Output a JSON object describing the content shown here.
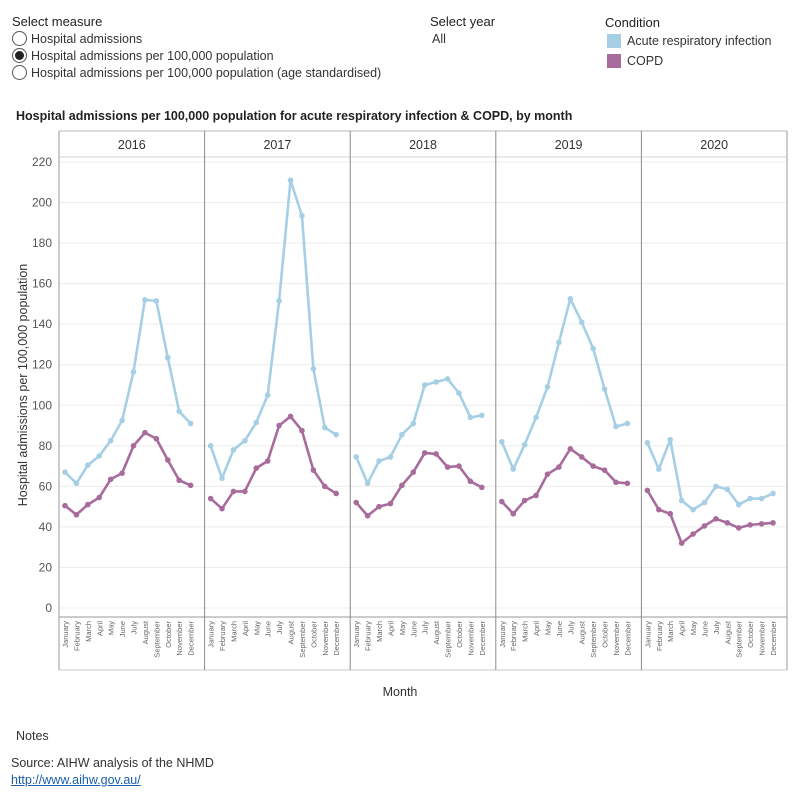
{
  "controls": {
    "measure": {
      "title": "Select measure",
      "options": [
        {
          "label": "Hospital admissions",
          "selected": false
        },
        {
          "label": "Hospital admissions per 100,000 population",
          "selected": true
        },
        {
          "label": "Hospital admissions per 100,000 population (age standardised)",
          "selected": false
        }
      ]
    },
    "year": {
      "title": "Select year",
      "value": "All"
    },
    "legend": {
      "title": "Condition",
      "items": [
        {
          "label": "Acute respiratory infection",
          "color": "#a6cfe6"
        },
        {
          "label": "COPD",
          "color": "#a86c9c"
        }
      ]
    }
  },
  "chart_data": {
    "type": "line",
    "title": "Hospital admissions per 100,000 population for acute respiratory infection & COPD, by month",
    "xlabel": "Month",
    "ylabel": "Hospital admissions per 100,000 population",
    "ylim": [
      0,
      220
    ],
    "yticks": [
      0,
      20,
      40,
      60,
      80,
      100,
      120,
      140,
      160,
      180,
      200,
      220
    ],
    "grid": true,
    "legend_position": "top-right",
    "months": [
      "January",
      "February",
      "March",
      "April",
      "May",
      "June",
      "July",
      "August",
      "September",
      "October",
      "November",
      "December"
    ],
    "panels": [
      {
        "year": "2016",
        "series": [
          {
            "name": "Acute respiratory infection",
            "color": "#a6cfe6",
            "values": [
              67,
              61.5,
              70.5,
              75,
              82.5,
              92.5,
              116.5,
              152,
              151.5,
              123.5,
              97,
              91
            ]
          },
          {
            "name": "COPD",
            "color": "#a86c9c",
            "values": [
              50.5,
              46,
              51,
              54.5,
              63.5,
              66.5,
              80,
              86.5,
              83.5,
              73,
              63,
              60.5
            ]
          }
        ]
      },
      {
        "year": "2017",
        "series": [
          {
            "name": "Acute respiratory infection",
            "color": "#a6cfe6",
            "values": [
              80,
              64,
              78,
              82.5,
              91.5,
              105,
              151.5,
              211,
              193.5,
              118,
              89,
              85.5
            ]
          },
          {
            "name": "COPD",
            "color": "#a86c9c",
            "values": [
              54,
              49,
              57.5,
              57.5,
              69,
              72.5,
              90,
              94.5,
              87.5,
              68,
              60,
              56.5
            ]
          }
        ]
      },
      {
        "year": "2018",
        "series": [
          {
            "name": "Acute respiratory infection",
            "color": "#a6cfe6",
            "values": [
              74.5,
              61.5,
              72.5,
              74.5,
              85.5,
              91,
              110,
              111.5,
              113,
              106,
              94,
              95
            ]
          },
          {
            "name": "COPD",
            "color": "#a86c9c",
            "values": [
              52,
              45.5,
              50,
              51.5,
              60.5,
              67,
              76.5,
              76,
              69.5,
              70,
              62.5,
              59.5
            ]
          }
        ]
      },
      {
        "year": "2019",
        "series": [
          {
            "name": "Acute respiratory infection",
            "color": "#a6cfe6",
            "values": [
              82,
              68.5,
              80.5,
              94,
              109,
              131,
              152.5,
              141,
              128,
              108,
              89.5,
              91
            ]
          },
          {
            "name": "COPD",
            "color": "#a86c9c",
            "values": [
              52.5,
              46.5,
              53,
              55.5,
              66,
              69.5,
              78.5,
              74.5,
              70,
              68,
              62,
              61.5
            ]
          }
        ]
      },
      {
        "year": "2020",
        "series": [
          {
            "name": "Acute respiratory infection",
            "color": "#a6cfe6",
            "values": [
              81.5,
              68.5,
              83,
              53,
              48.5,
              52,
              60,
              58.5,
              51,
              54,
              54,
              56.5
            ]
          },
          {
            "name": "COPD",
            "color": "#a86c9c",
            "values": [
              58,
              48.5,
              46.5,
              32,
              36.5,
              40.5,
              44,
              42,
              39.5,
              41,
              41.5,
              42
            ]
          }
        ]
      }
    ]
  },
  "footer": {
    "notes": "Notes",
    "source": "Source: AIHW analysis of the NHMD",
    "link": "http://www.aihw.gov.au/"
  }
}
